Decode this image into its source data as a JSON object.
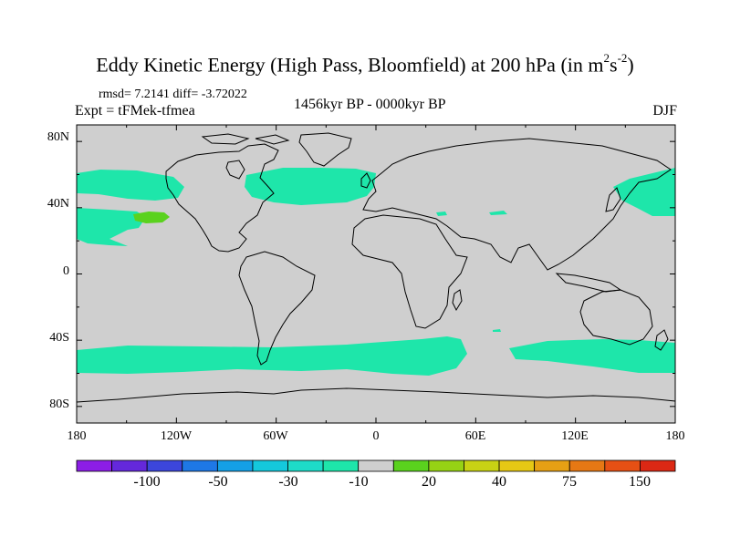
{
  "title": {
    "main": "Eddy Kinetic Energy (High Pass, Bloomfield) at 200 hPa (in m",
    "sup1": "2",
    "mid": "s",
    "sup2": "-2",
    "end": ")"
  },
  "stats": "rmsd= 7.2141 diff= -3.72022",
  "expt": "Expt = tFMek-tfmea",
  "period": "1456kyr BP - 0000kyr BP",
  "season": "DJF",
  "lat_labels": [
    "80N",
    "40N",
    "0",
    "40S",
    "80S"
  ],
  "lon_labels": [
    "180",
    "120W",
    "60W",
    "0",
    "60E",
    "120E",
    "180"
  ],
  "colorbar": {
    "colors": [
      "#8c1ee6",
      "#6428dc",
      "#3c46dc",
      "#1e78e6",
      "#14a0e6",
      "#14c8dc",
      "#1edcc8",
      "#1ee6aa",
      "#cfcfcf",
      "#5ad21e",
      "#96d214",
      "#c8d214",
      "#e6c814",
      "#e6a014",
      "#e67814",
      "#e65014",
      "#dc2814"
    ],
    "labels": [
      "-100",
      "-50",
      "-30",
      "-10",
      "20",
      "40",
      "75",
      "150"
    ]
  },
  "map_colors": {
    "ocean_land_bg": "#cfcfcf",
    "negative_band": "#1ee6aa",
    "positive_patch": "#5ad21e",
    "coast": "#000000"
  }
}
